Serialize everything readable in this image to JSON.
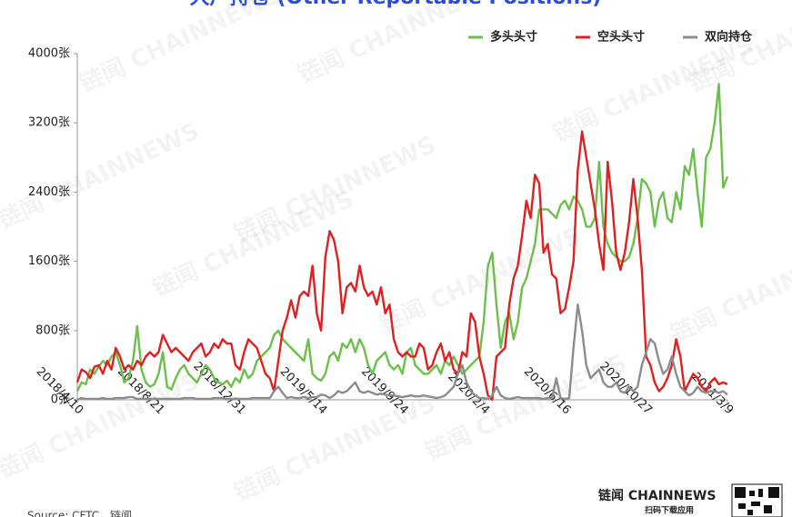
{
  "chart_data": {
    "type": "line",
    "title": "大户持仓 (Other Reportable Positions)",
    "source": "Source: CFTC，链闻",
    "watermark": "链闻 CHAINNEWS",
    "logo": "链闻 CHAINNEWS",
    "logo_caption": "扫码下载应用",
    "legend": "top-right",
    "grid": false,
    "categories": [
      "2018/4/10",
      null,
      null,
      null,
      null,
      null,
      null,
      null,
      null,
      null,
      null,
      null,
      null,
      null,
      null,
      null,
      null,
      null,
      null,
      "2018/8/21",
      null,
      null,
      null,
      null,
      null,
      null,
      null,
      null,
      null,
      null,
      null,
      null,
      null,
      null,
      null,
      null,
      null,
      null,
      "2018/12/31",
      null,
      null,
      null,
      null,
      null,
      null,
      null,
      null,
      null,
      null,
      null,
      null,
      null,
      null,
      null,
      null,
      null,
      null,
      "2019/5/14",
      null,
      null,
      null,
      null,
      null,
      null,
      null,
      null,
      null,
      null,
      null,
      null,
      null,
      null,
      null,
      null,
      null,
      null,
      "2019/9/24",
      null,
      null,
      null,
      null,
      null,
      null,
      null,
      null,
      null,
      null,
      null,
      null,
      null,
      null,
      null,
      null,
      null,
      null,
      "2020/2/4",
      null,
      null,
      null,
      null,
      null,
      null,
      null,
      null,
      null,
      null,
      null,
      null,
      null,
      null,
      null,
      null,
      null,
      null,
      "2020/6/16",
      null,
      null,
      null,
      null,
      null,
      null,
      null,
      null,
      null,
      null,
      null,
      null,
      null,
      null,
      null,
      null,
      null,
      null,
      "2020/10/27",
      null,
      null,
      null,
      null,
      null,
      null,
      null,
      null,
      null,
      null,
      null,
      null,
      null,
      null,
      null,
      null,
      null,
      null,
      "2021/3/9"
    ],
    "ylim": [
      0,
      4000
    ],
    "yticks": [
      {
        "value": 0,
        "label": "0张"
      },
      {
        "value": 800,
        "label": "800张"
      },
      {
        "value": 1600,
        "label": "1600张"
      },
      {
        "value": 2400,
        "label": "2400张"
      },
      {
        "value": 3200,
        "label": "3200张"
      },
      {
        "value": 4000,
        "label": "4000张"
      }
    ],
    "series": [
      {
        "name": "多头头寸",
        "color": "#6cbf4b",
        "values": [
          100,
          200,
          180,
          350,
          300,
          380,
          450,
          400,
          500,
          550,
          400,
          200,
          250,
          450,
          850,
          350,
          200,
          150,
          180,
          300,
          550,
          150,
          120,
          250,
          350,
          400,
          300,
          250,
          200,
          300,
          400,
          350,
          250,
          200,
          180,
          220,
          150,
          250,
          200,
          350,
          250,
          300,
          450,
          500,
          550,
          600,
          750,
          800,
          700,
          650,
          600,
          550,
          500,
          450,
          700,
          300,
          250,
          220,
          300,
          500,
          550,
          450,
          650,
          600,
          700,
          550,
          700,
          600,
          400,
          300,
          450,
          500,
          550,
          400,
          350,
          400,
          300,
          550,
          600,
          400,
          350,
          300,
          300,
          350,
          400,
          300,
          450,
          400,
          500,
          400,
          300,
          350,
          400,
          450,
          500,
          900,
          1550,
          1700,
          1100,
          600,
          900,
          1000,
          700,
          900,
          1300,
          1400,
          1600,
          1800,
          2200,
          2200,
          2200,
          2150,
          2100,
          2250,
          2300,
          2200,
          2350,
          2300,
          2200,
          2000,
          2000,
          2100,
          2750,
          2000,
          1800,
          1700,
          1650,
          1600,
          1600,
          1650,
          1800,
          2100,
          2550,
          2500,
          2400,
          2000,
          2300,
          2400,
          2100,
          2050,
          2400,
          2200,
          2700,
          2600,
          2900,
          2400,
          2000,
          2800,
          2900,
          3200,
          3650,
          2450,
          2580
        ]
      },
      {
        "name": "空头头寸",
        "color": "#e02020",
        "values": [
          200,
          350,
          320,
          250,
          380,
          400,
          300,
          450,
          350,
          600,
          500,
          350,
          400,
          350,
          450,
          400,
          500,
          550,
          500,
          550,
          750,
          650,
          550,
          600,
          550,
          500,
          450,
          550,
          600,
          650,
          500,
          550,
          650,
          600,
          700,
          650,
          650,
          400,
          350,
          550,
          700,
          650,
          600,
          450,
          300,
          250,
          100,
          450,
          800,
          950,
          1150,
          950,
          1200,
          1250,
          1200,
          1550,
          1000,
          800,
          1650,
          1950,
          1850,
          1600,
          1000,
          1300,
          1350,
          1250,
          1550,
          1300,
          1200,
          1250,
          1100,
          1300,
          1000,
          1100,
          700,
          550,
          500,
          550,
          500,
          500,
          650,
          600,
          350,
          400,
          550,
          650,
          450,
          550,
          350,
          300,
          550,
          500,
          1000,
          900,
          500,
          300,
          50,
          0,
          500,
          550,
          600,
          1100,
          1400,
          1550,
          1900,
          2300,
          2100,
          2600,
          2500,
          1700,
          1800,
          1450,
          1400,
          1000,
          1050,
          1300,
          1600,
          2650,
          3100,
          2800,
          2500,
          2200,
          1800,
          1500,
          2750,
          2300,
          1700,
          1500,
          1700,
          2050,
          2550,
          2100,
          1500,
          500,
          400,
          200,
          100,
          150,
          250,
          400,
          700,
          500,
          100,
          200,
          300,
          250,
          150,
          100,
          200,
          250,
          180,
          200,
          180
        ]
      },
      {
        "name": "双向持仓",
        "color": "#8c8c8c",
        "values": [
          0,
          20,
          10,
          10,
          10,
          10,
          20,
          10,
          10,
          20,
          20,
          20,
          30,
          30,
          10,
          10,
          10,
          10,
          10,
          10,
          10,
          10,
          10,
          10,
          10,
          20,
          20,
          20,
          10,
          10,
          10,
          10,
          20,
          20,
          20,
          10,
          10,
          10,
          10,
          10,
          10,
          20,
          20,
          20,
          20,
          20,
          100,
          150,
          80,
          20,
          30,
          20,
          20,
          30,
          20,
          30,
          30,
          60,
          50,
          20,
          50,
          100,
          80,
          100,
          150,
          200,
          100,
          80,
          100,
          80,
          60,
          70,
          60,
          50,
          50,
          40,
          30,
          40,
          50,
          40,
          40,
          50,
          40,
          30,
          20,
          30,
          50,
          100,
          150,
          300,
          400,
          200,
          100,
          50,
          20,
          20,
          10,
          50,
          150,
          50,
          20,
          10,
          20,
          30,
          20,
          20,
          20,
          20,
          20,
          10,
          20,
          20,
          250,
          20,
          10,
          20,
          600,
          1100,
          800,
          400,
          250,
          300,
          350,
          200,
          150,
          150,
          200,
          100,
          80,
          150,
          100,
          150,
          400,
          550,
          700,
          650,
          450,
          300,
          350,
          500,
          300,
          150,
          100,
          50,
          80,
          150,
          100,
          80,
          100,
          100,
          80,
          100,
          60
        ]
      }
    ]
  }
}
